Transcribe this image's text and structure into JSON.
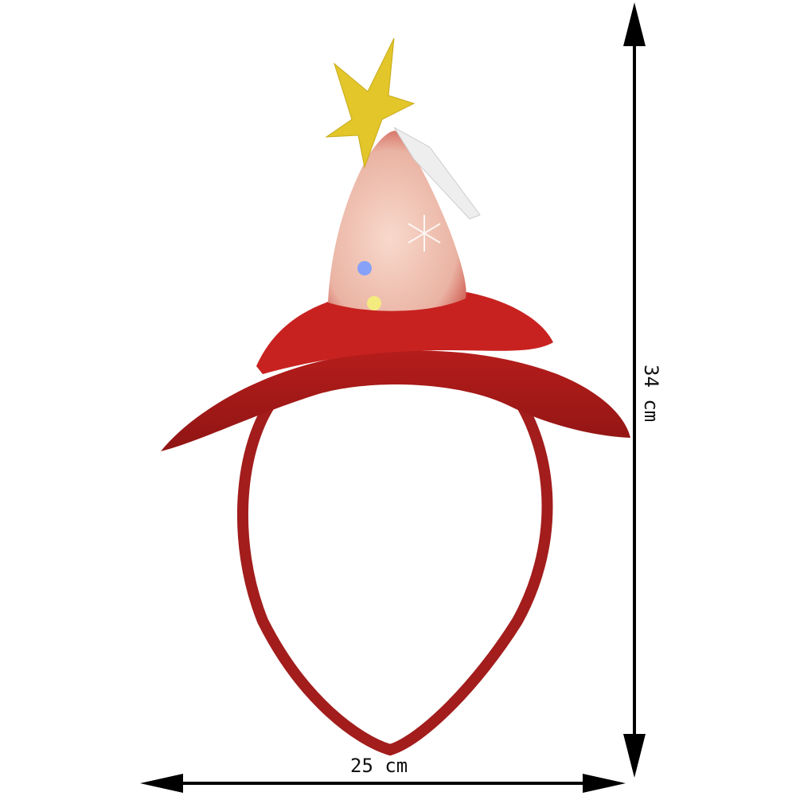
{
  "product": {
    "colors": {
      "hat_red": "#c0201e",
      "band_red": "#a8201e",
      "star_yellow": "#e2c62a",
      "cone_pink": "#f0c4b4"
    }
  },
  "dimensions": {
    "height_label": "34 cm",
    "width_label": "25 cm"
  }
}
